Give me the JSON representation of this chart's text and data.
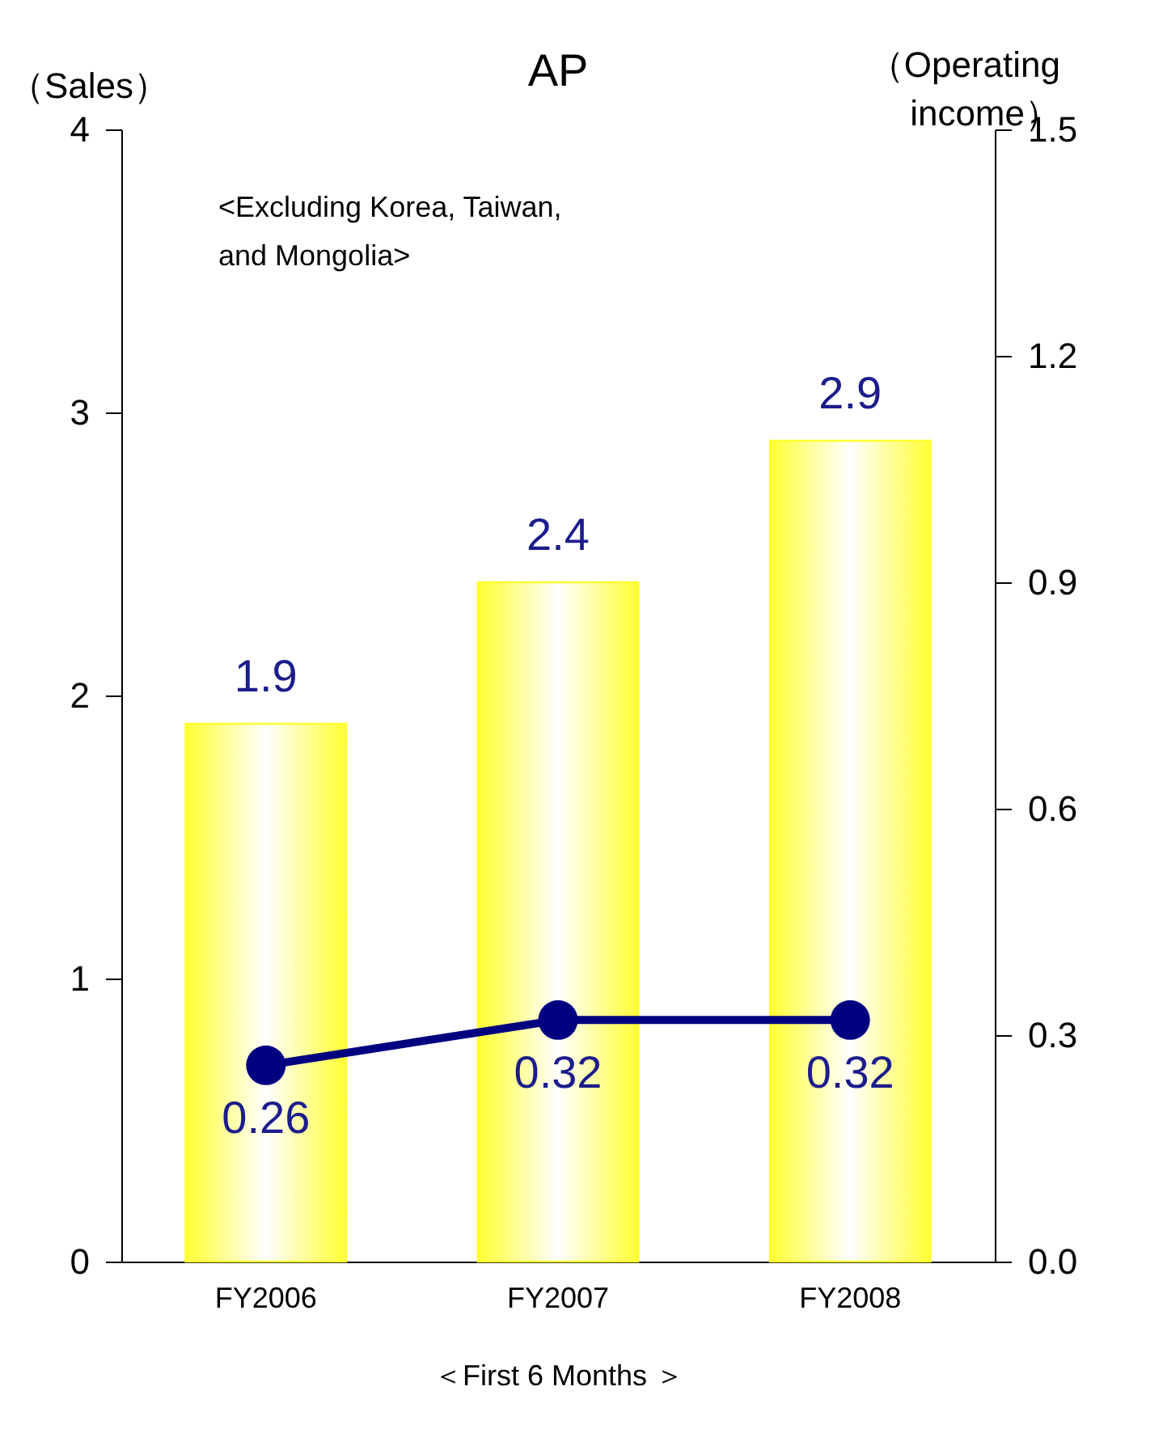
{
  "chart_data": {
    "type": "bar",
    "title": "AP",
    "ylabel": "（Sales）",
    "y2label": "（Operating income）",
    "xlabel": "＜First 6 Months ＞",
    "annotations": [
      "<Excluding Korea, Taiwan, and Mongolia>"
    ],
    "categories": [
      "FY2006",
      "FY2007",
      "FY2008"
    ],
    "series": [
      {
        "color": "#ffff33",
        "values": [
          1.9,
          2.4,
          2.9
        ]
      },
      {
        "type": "line",
        "color": "#000080",
        "axis": "y2",
        "values": [
          0.26,
          0.32,
          0.32
        ]
      }
    ],
    "ylim": [
      0,
      4
    ],
    "yticks": [
      0,
      1,
      2,
      3,
      4
    ],
    "y2lim": [
      0,
      1.5
    ],
    "y2ticks": [
      {
        "value": 0,
        "label": "0.0"
      },
      0.3,
      0.6,
      0.9,
      1.2,
      1.5
    ],
    "data_labels": true,
    "marker": "circle",
    "line_style": "solid",
    "grid": false
  }
}
